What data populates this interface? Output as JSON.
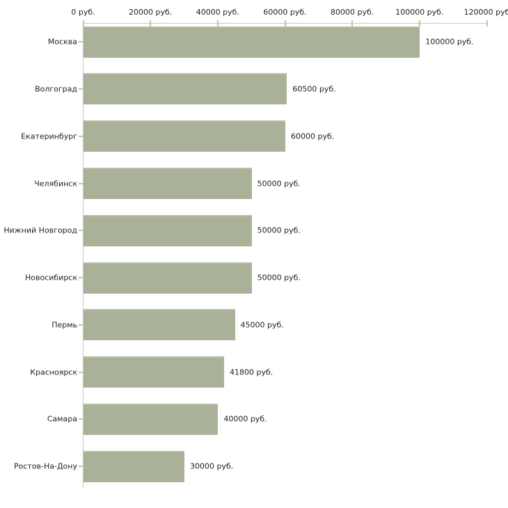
{
  "chart_data": {
    "type": "bar",
    "orientation": "horizontal",
    "title": "",
    "xlabel": "",
    "ylabel": "",
    "grid": false,
    "legend": false,
    "xlim": [
      0,
      120000
    ],
    "x_ticks": [
      0,
      20000,
      40000,
      60000,
      80000,
      100000,
      120000
    ],
    "x_tick_labels": [
      "0 руб.",
      "20000 руб.",
      "40000 руб.",
      "60000 руб.",
      "80000 руб.",
      "100000 руб.",
      "120000 руб"
    ],
    "categories": [
      "Москва",
      "Волгоград",
      "Екатеринбург",
      "Челябинск",
      "Нижний Новгород",
      "Новосибирск",
      "Пермь",
      "Красноярск",
      "Самара",
      "Ростов-На-Дону"
    ],
    "values": [
      100000,
      60500,
      60000,
      50000,
      50000,
      50000,
      45000,
      41800,
      40000,
      30000
    ],
    "value_labels": [
      "100000 руб.",
      "60500 руб.",
      "60000 руб.",
      "50000 руб.",
      "50000 руб.",
      "50000 руб.",
      "45000 руб.",
      "41800 руб.",
      "40000 руб.",
      "30000 руб."
    ],
    "currency_suffix": "руб.",
    "colors": {
      "bar": "#aab199",
      "bar_top_highlight": "#b9c0a8",
      "axis_line": "#c8c8c8",
      "tick_mark": "#c9c2a0",
      "text": "#1f1f1f",
      "background": "#ffffff"
    }
  }
}
